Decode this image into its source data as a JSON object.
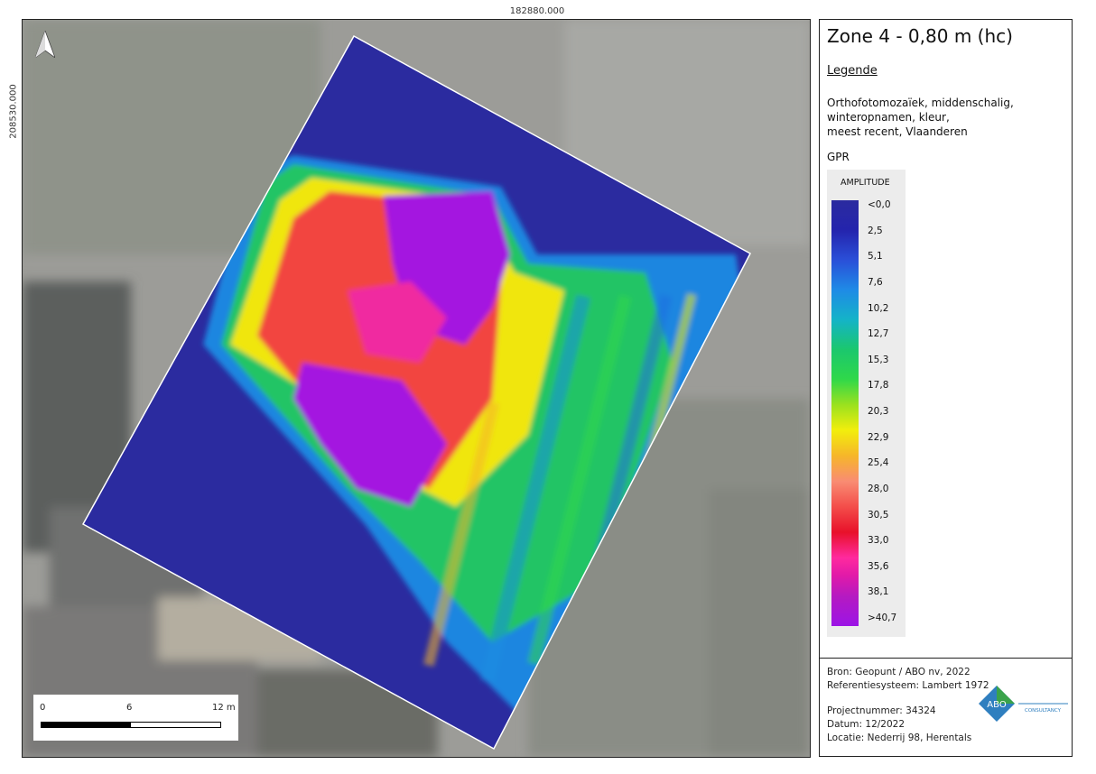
{
  "coordinates": {
    "top": "182880.000",
    "left": "208530.000"
  },
  "map": {
    "north_arrow_icon": "north-arrow-icon",
    "scalebar": {
      "labels": [
        "0",
        "6",
        "12 m"
      ]
    }
  },
  "legend": {
    "title": "Zone 4 - 0,80 m (hc)",
    "heading": "Legende",
    "basemap_lines": [
      "Orthofotomozaïek, middenschalig,",
      "winteropnamen, kleur,",
      "meest recent, Vlaanderen"
    ],
    "layer": "GPR",
    "ramp_title": "AMPLITUDE",
    "ticks": [
      "<0,0",
      "2,5",
      "5,1",
      "7,6",
      "10,2",
      "12,7",
      "15,3",
      "17,8",
      "20,3",
      "22,9",
      "25,4",
      "28,0",
      "30,5",
      "33,0",
      "35,6",
      "38,1",
      ">40,7"
    ],
    "ramp_colors": [
      "#2b2b9f",
      "#2a4fd8",
      "#14b3c8",
      "#2fd84a",
      "#f2ee0c",
      "#f98c73",
      "#e8112a",
      "#ff2a9e",
      "#9c14e6"
    ]
  },
  "info": {
    "source": "Bron: Geopunt / ABO nv, 2022",
    "crs": "Referentiesysteem: Lambert 1972",
    "project": "Projectnummer: 34324",
    "date": "Datum: 12/2022",
    "location": "Locatie: Nederrij 98, Herentals",
    "logo_text": "ABO",
    "logo_sub": "CONSULTANCY"
  }
}
